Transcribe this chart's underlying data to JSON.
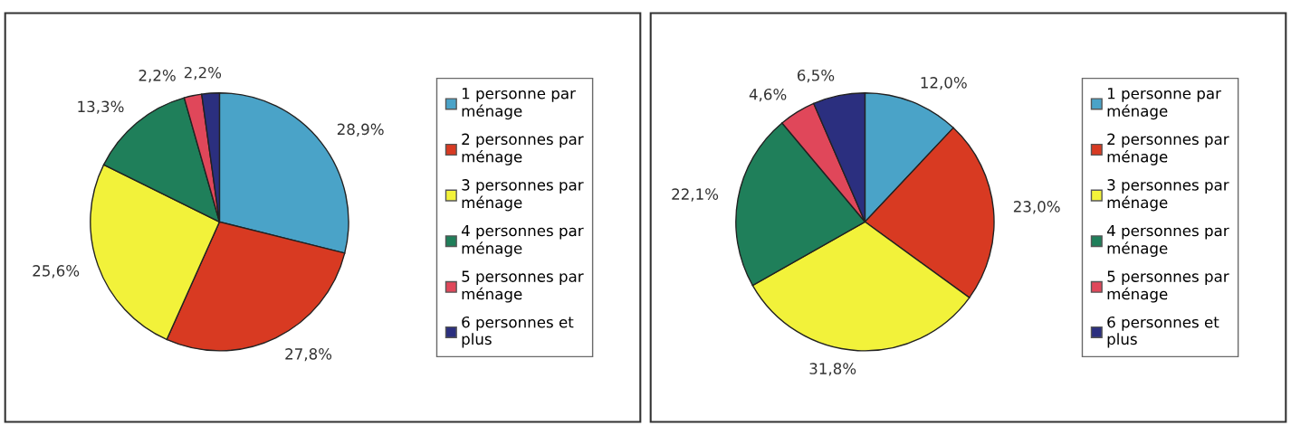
{
  "chart_data": [
    {
      "type": "pie",
      "categories": [
        "1 personne par\nménage",
        "2 personnes par\nménage",
        "3 personnes par\nménage",
        "4 personnes par\nménage",
        "5 personnes par\nménage",
        "6 personnes et\nplus"
      ],
      "values": [
        28.9,
        27.8,
        25.6,
        13.3,
        2.2,
        2.2
      ],
      "value_labels": [
        "28,9%",
        "27,8%",
        "25,6%",
        "13,3%",
        "2,2%",
        "2,2%"
      ],
      "colors": [
        "#4aa3c8",
        "#d83a22",
        "#f2f23a",
        "#1f7f5a",
        "#e0475a",
        "#2b2f7f"
      ],
      "legend": "right"
    },
    {
      "type": "pie",
      "categories": [
        "1 personne par\nménage",
        "2 personnes par\nménage",
        "3 personnes par\nménage",
        "4 personnes par\nménage",
        "5 personnes par\nménage",
        "6 personnes et\nplus"
      ],
      "values": [
        12.0,
        23.0,
        31.8,
        22.1,
        4.6,
        6.5
      ],
      "value_labels": [
        "12,0%",
        "23,0%",
        "31,8%",
        "22,1%",
        "4,6%",
        "6,5%"
      ],
      "colors": [
        "#4aa3c8",
        "#d83a22",
        "#f2f23a",
        "#1f7f5a",
        "#e0475a",
        "#2b2f7f"
      ],
      "legend": "right"
    }
  ]
}
